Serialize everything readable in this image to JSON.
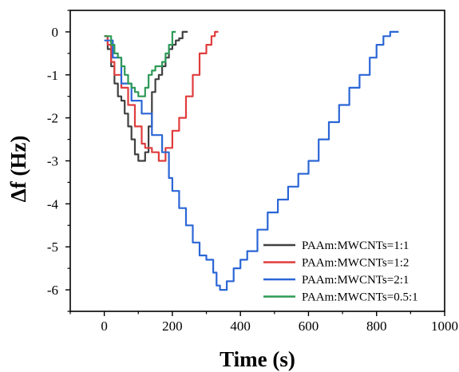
{
  "chart_data": {
    "type": "line",
    "xlabel": "Time (s)",
    "ylabel": "Δf (Hz)",
    "xlim": [
      -100,
      1000
    ],
    "ylim": [
      -6.5,
      0.5
    ],
    "x_ticks": [
      "0",
      "200",
      "400",
      "600",
      "800",
      "1000"
    ],
    "y_ticks": [
      "0",
      "-1",
      "-2",
      "-3",
      "-4",
      "-5",
      "-6"
    ],
    "legend_position": "bottom-right",
    "grid": false,
    "series": [
      {
        "name": "PAAm:MWCNTs=1:1",
        "color": "#404040",
        "x": [
          0,
          10,
          20,
          30,
          40,
          50,
          60,
          70,
          80,
          90,
          100,
          110,
          120,
          130,
          140,
          150,
          160,
          170,
          180,
          190,
          200,
          210,
          220,
          230,
          245
        ],
        "y": [
          -0.1,
          -0.4,
          -0.8,
          -1.2,
          -1.5,
          -1.6,
          -1.9,
          -2.2,
          -2.5,
          -2.85,
          -3.0,
          -3.0,
          -2.8,
          -2.2,
          -1.4,
          -1.1,
          -1.0,
          -0.8,
          -0.6,
          -0.4,
          -0.3,
          -0.2,
          -0.15,
          0,
          0
        ]
      },
      {
        "name": "PAAm:MWCNTs=1:2",
        "color": "#e03c3c",
        "x": [
          0,
          10,
          20,
          30,
          50,
          70,
          90,
          110,
          120,
          130,
          140,
          160,
          180,
          200,
          220,
          240,
          260,
          280,
          300,
          315,
          325,
          335
        ],
        "y": [
          -0.1,
          -0.3,
          -0.7,
          -1.0,
          -1.3,
          -1.7,
          -2.2,
          -2.6,
          -2.7,
          -2.7,
          -2.8,
          -3.0,
          -2.7,
          -2.3,
          -2.0,
          -1.5,
          -1.0,
          -0.5,
          -0.3,
          -0.1,
          0,
          0
        ]
      },
      {
        "name": "PAAm:MWCNTs=2:1",
        "color": "#2b66d6",
        "x": [
          0,
          25,
          50,
          80,
          110,
          140,
          170,
          190,
          200,
          220,
          240,
          260,
          280,
          300,
          320,
          330,
          340,
          360,
          380,
          400,
          420,
          450,
          480,
          510,
          540,
          570,
          600,
          630,
          660,
          690,
          720,
          750,
          780,
          800,
          820,
          840,
          865
        ],
        "y": [
          -0.2,
          -0.6,
          -1.2,
          -1.6,
          -1.9,
          -2.4,
          -2.8,
          -3.4,
          -3.7,
          -4.1,
          -4.5,
          -4.9,
          -5.2,
          -5.3,
          -5.6,
          -5.9,
          -6.0,
          -5.8,
          -5.5,
          -5.3,
          -5.1,
          -4.6,
          -4.2,
          -3.9,
          -3.6,
          -3.3,
          -3.0,
          -2.5,
          -2.1,
          -1.7,
          -1.3,
          -1.0,
          -0.6,
          -0.3,
          -0.1,
          0,
          0
        ]
      },
      {
        "name": "PAAm:MWCNTs=0.5:1",
        "color": "#2e9a57",
        "x": [
          0,
          10,
          20,
          30,
          40,
          50,
          60,
          70,
          80,
          90,
          100,
          110,
          120,
          130,
          140,
          150,
          160,
          170,
          180,
          190,
          200,
          210
        ],
        "y": [
          -0.1,
          -0.1,
          -0.3,
          -0.5,
          -0.6,
          -0.8,
          -1.0,
          -1.2,
          -1.3,
          -1.4,
          -1.5,
          -1.5,
          -1.3,
          -1.0,
          -0.9,
          -0.8,
          -0.8,
          -0.7,
          -0.5,
          -0.3,
          0,
          0
        ]
      }
    ]
  }
}
